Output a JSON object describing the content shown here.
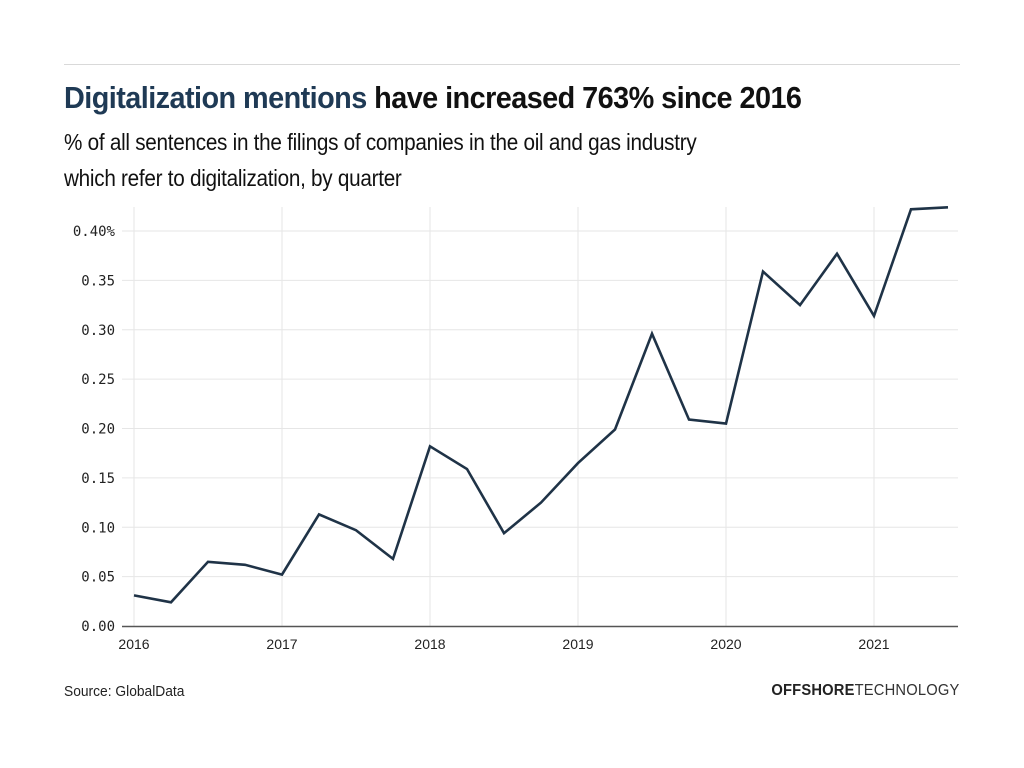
{
  "header": {
    "title_highlight": "Digitalization mentions",
    "title_rest": " have increased 763% since 2016",
    "subtitle_line1": "% of all sentences in the filings of companies in the oil and gas industry",
    "subtitle_line2": "which refer to digitalization, by quarter"
  },
  "footer": {
    "source": "Source: GlobalData",
    "brand_bold": "OFFSHORE",
    "brand_light": "TECHNOLOGY"
  },
  "colors": {
    "line": "#1f3347",
    "highlight": "#1f3a55",
    "grid": "#e6e6e6",
    "axis": "#555555"
  },
  "chart_data": {
    "type": "line",
    "title": "Digitalization mentions have increased 763% since 2016",
    "subtitle": "% of all sentences in the filings of companies in the oil and gas industry which refer to digitalization, by quarter",
    "xlabel": "",
    "ylabel": "",
    "x": [
      2016.0,
      2016.25,
      2016.5,
      2016.75,
      2017.0,
      2017.25,
      2017.5,
      2017.75,
      2018.0,
      2018.25,
      2018.5,
      2018.75,
      2019.0,
      2019.25,
      2019.5,
      2019.75,
      2020.0,
      2020.25,
      2020.5,
      2020.75,
      2021.0,
      2021.25,
      2021.5
    ],
    "series": [
      {
        "name": "Digitalization mentions (%)",
        "values": [
          0.031,
          0.024,
          0.065,
          0.062,
          0.052,
          0.113,
          0.097,
          0.068,
          0.182,
          0.159,
          0.094,
          0.125,
          0.165,
          0.199,
          0.296,
          0.209,
          0.205,
          0.359,
          0.325,
          0.377,
          0.314,
          0.422,
          0.424
        ]
      }
    ],
    "xlim": [
      2016.0,
      2021.6
    ],
    "ylim": [
      0,
      0.43
    ],
    "x_ticks": [
      2016,
      2017,
      2018,
      2019,
      2020,
      2021
    ],
    "x_tick_labels": [
      "2016",
      "2017",
      "2018",
      "2019",
      "2020",
      "2021"
    ],
    "y_ticks": [
      0,
      0.05,
      0.1,
      0.15,
      0.2,
      0.25,
      0.3,
      0.35,
      0.4
    ],
    "y_tick_labels": [
      "0.00",
      "0.05",
      "0.10",
      "0.15",
      "0.20",
      "0.25",
      "0.30",
      "0.35",
      "0.40%"
    ],
    "grid": true,
    "legend": "none"
  }
}
